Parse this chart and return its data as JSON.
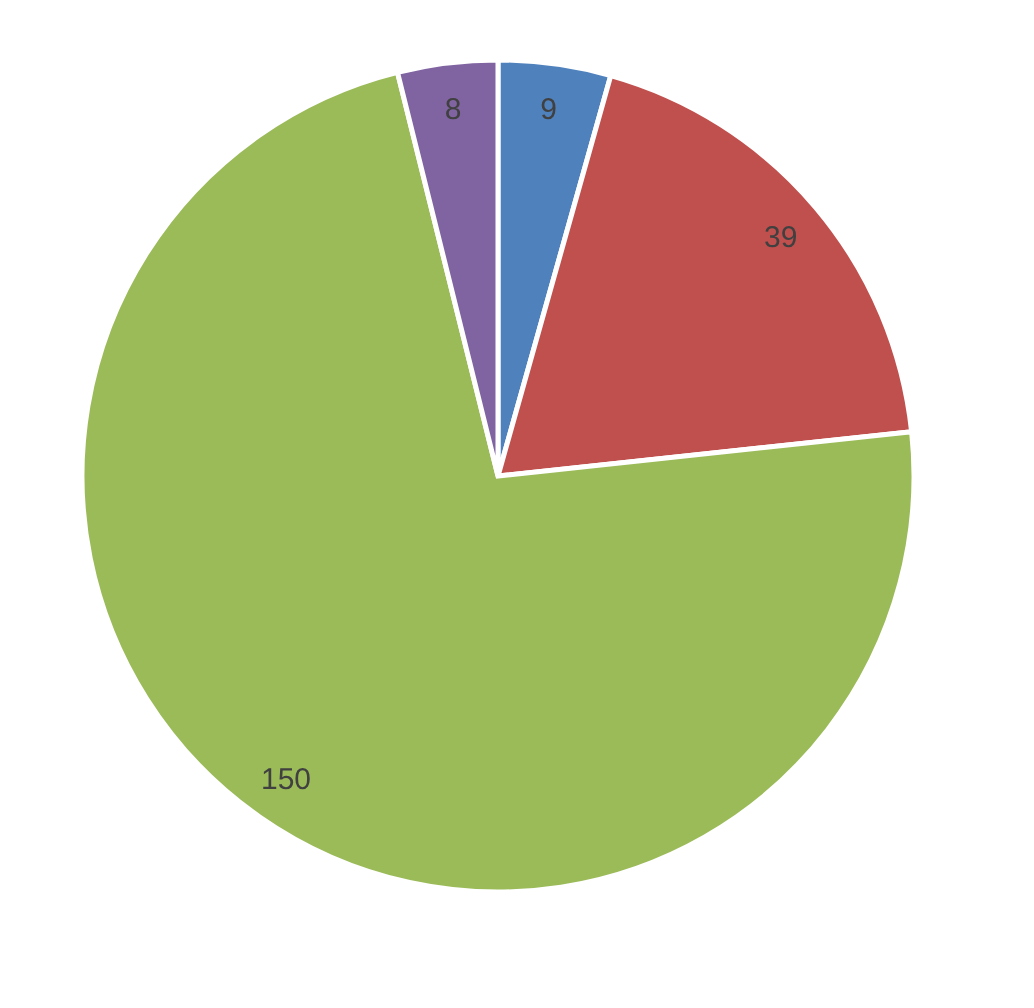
{
  "chart_data": {
    "type": "pie",
    "categories": [
      null,
      null,
      null,
      null
    ],
    "values": [
      9,
      39,
      150,
      8
    ],
    "colors": [
      "#4f81bd",
      "#c0504d",
      "#9bbb59",
      "#8064a2"
    ],
    "data_labels": true
  }
}
